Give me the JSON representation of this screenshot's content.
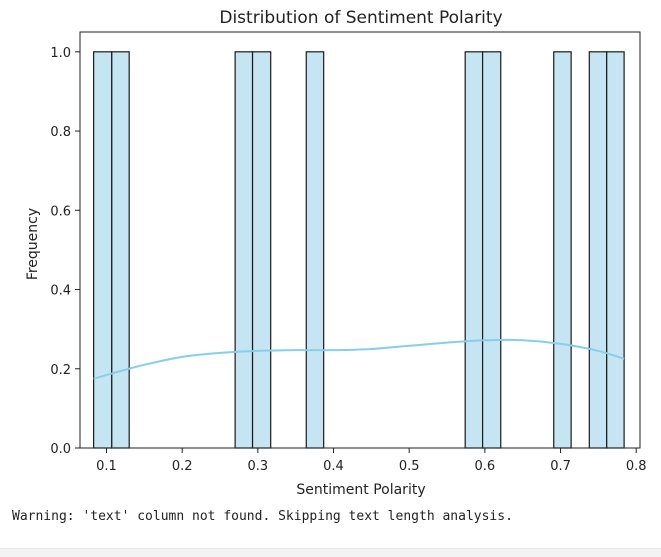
{
  "chart_data": {
    "type": "histogram",
    "title": "Distribution of Sentiment Polarity",
    "xlabel": "Sentiment Polarity",
    "ylabel": "Frequency",
    "xlim": [
      0.065,
      0.805
    ],
    "ylim": [
      0,
      1.05
    ],
    "xticks": [
      0.1,
      0.2,
      0.3,
      0.4,
      0.5,
      0.6,
      0.7,
      0.8
    ],
    "xtick_labels": [
      "0.1",
      "0.2",
      "0.3",
      "0.4",
      "0.5",
      "0.6",
      "0.7",
      "0.8"
    ],
    "yticks": [
      0,
      0.2,
      0.4,
      0.6,
      0.8,
      1.0
    ],
    "ytick_labels": [
      "0.0",
      "0.2",
      "0.4",
      "0.6",
      "0.8",
      "1.0"
    ],
    "bins": [
      {
        "x0": 0.083,
        "x1": 0.107,
        "count": 1
      },
      {
        "x0": 0.107,
        "x1": 0.13,
        "count": 1
      },
      {
        "x0": 0.27,
        "x1": 0.293,
        "count": 1
      },
      {
        "x0": 0.293,
        "x1": 0.317,
        "count": 1
      },
      {
        "x0": 0.364,
        "x1": 0.387,
        "count": 1
      },
      {
        "x0": 0.574,
        "x1": 0.597,
        "count": 1
      },
      {
        "x0": 0.597,
        "x1": 0.621,
        "count": 1
      },
      {
        "x0": 0.691,
        "x1": 0.714,
        "count": 1
      },
      {
        "x0": 0.738,
        "x1": 0.761,
        "count": 1
      },
      {
        "x0": 0.761,
        "x1": 0.784,
        "count": 1
      }
    ],
    "kde": {
      "x": [
        0.083,
        0.12,
        0.15,
        0.2,
        0.25,
        0.3,
        0.35,
        0.4,
        0.45,
        0.5,
        0.55,
        0.6,
        0.65,
        0.7,
        0.75,
        0.784
      ],
      "y": [
        0.175,
        0.195,
        0.21,
        0.23,
        0.24,
        0.245,
        0.247,
        0.247,
        0.25,
        0.258,
        0.266,
        0.272,
        0.272,
        0.263,
        0.245,
        0.225
      ]
    },
    "bar_fill": "#c5e5f3",
    "bar_edge": "#1a1a1a",
    "kde_color": "#87ceeb",
    "grid": false,
    "legend": false
  },
  "console": {
    "warning_text": "Warning: 'text' column not found. Skipping text length analysis."
  }
}
